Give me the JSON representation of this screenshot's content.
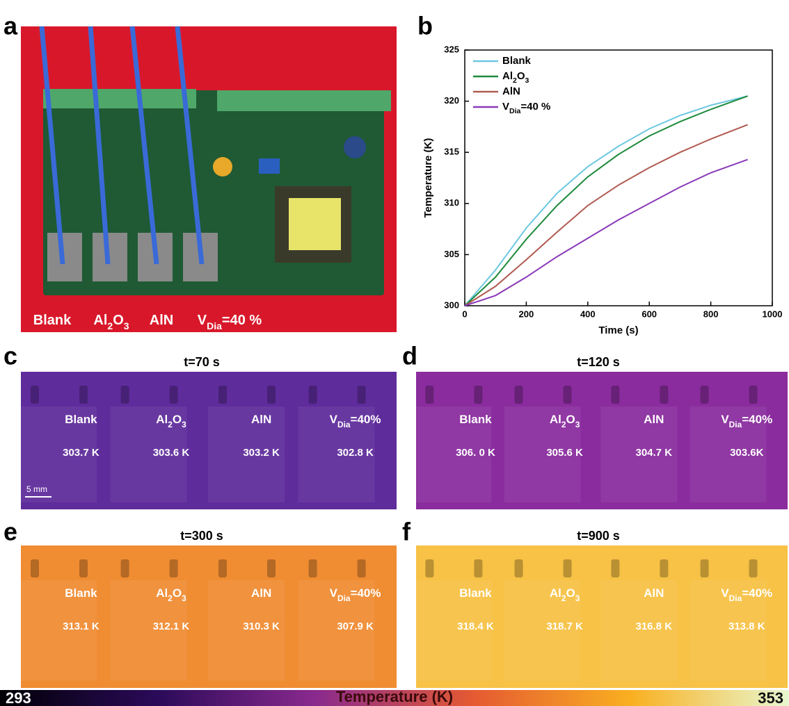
{
  "panel_labels": [
    "a",
    "b",
    "c",
    "d",
    "e",
    "f"
  ],
  "photo": {
    "labels": [
      "Blank",
      "Al2O3",
      "AlN",
      "VDia=40 %"
    ]
  },
  "chart_data": {
    "type": "line",
    "xlabel": "Time (s)",
    "ylabel": "Temperature (K)",
    "x": [
      0,
      100,
      200,
      300,
      400,
      500,
      600,
      700,
      800,
      920
    ],
    "series": [
      {
        "name": "Blank",
        "color": "#6cc8e0",
        "values": [
          300,
          303.5,
          307.6,
          311,
          313.6,
          315.6,
          317.3,
          318.6,
          319.6,
          320.5
        ]
      },
      {
        "name": "Al2O3",
        "color": "#1e8a3c",
        "values": [
          300,
          302.8,
          306.5,
          309.8,
          312.6,
          314.8,
          316.6,
          318.0,
          319.2,
          320.5
        ]
      },
      {
        "name": "AlN",
        "color": "#b05a50",
        "values": [
          300,
          301.9,
          304.5,
          307.2,
          309.8,
          311.8,
          313.5,
          315,
          316.3,
          317.7
        ]
      },
      {
        "name": "VDia=40 %",
        "color": "#8a3ab8",
        "values": [
          300,
          301,
          302.8,
          304.8,
          306.6,
          308.4,
          310,
          311.6,
          313,
          314.3
        ]
      }
    ],
    "xlim": [
      0,
      1000
    ],
    "xticks": [
      0,
      200,
      400,
      600,
      800,
      1000
    ],
    "ylim": [
      300,
      325
    ],
    "yticks": [
      300,
      305,
      310,
      315,
      320,
      325
    ],
    "legend": "upper left"
  },
  "thermal_panels": [
    {
      "title": "t=70 s",
      "color": "#5f2c9c",
      "names": [
        "Blank",
        "Al2O3",
        "AlN",
        "VDia=40%"
      ],
      "temperatures": [
        "303.7 K",
        "303.6 K",
        "303.2 K",
        "302.8 K"
      ],
      "scale_bar": "5 mm"
    },
    {
      "title": "t=120 s",
      "color": "#8a2c9e",
      "names": [
        "Blank",
        "Al2O3",
        "AlN",
        "VDia=40%"
      ],
      "temperatures": [
        "306. 0 K",
        "305.6 K",
        "304.7 K",
        "303.6K"
      ]
    },
    {
      "title": "t=300 s",
      "color": "#f08c32",
      "names": [
        "Blank",
        "Al2O3",
        "AlN",
        "VDia=40%"
      ],
      "temperatures": [
        "313.1 K",
        "312.1 K",
        "310.3 K",
        "307.9 K"
      ]
    },
    {
      "title": "t=900 s",
      "color": "#f7c245",
      "names": [
        "Blank",
        "Al2O3",
        "AlN",
        "VDia=40%"
      ],
      "temperatures": [
        "318.4 K",
        "318.7 K",
        "316.8 K",
        "313.8 K"
      ]
    }
  ],
  "colorbar": {
    "min": 293,
    "max": 353,
    "label": "Temperature (K)"
  }
}
